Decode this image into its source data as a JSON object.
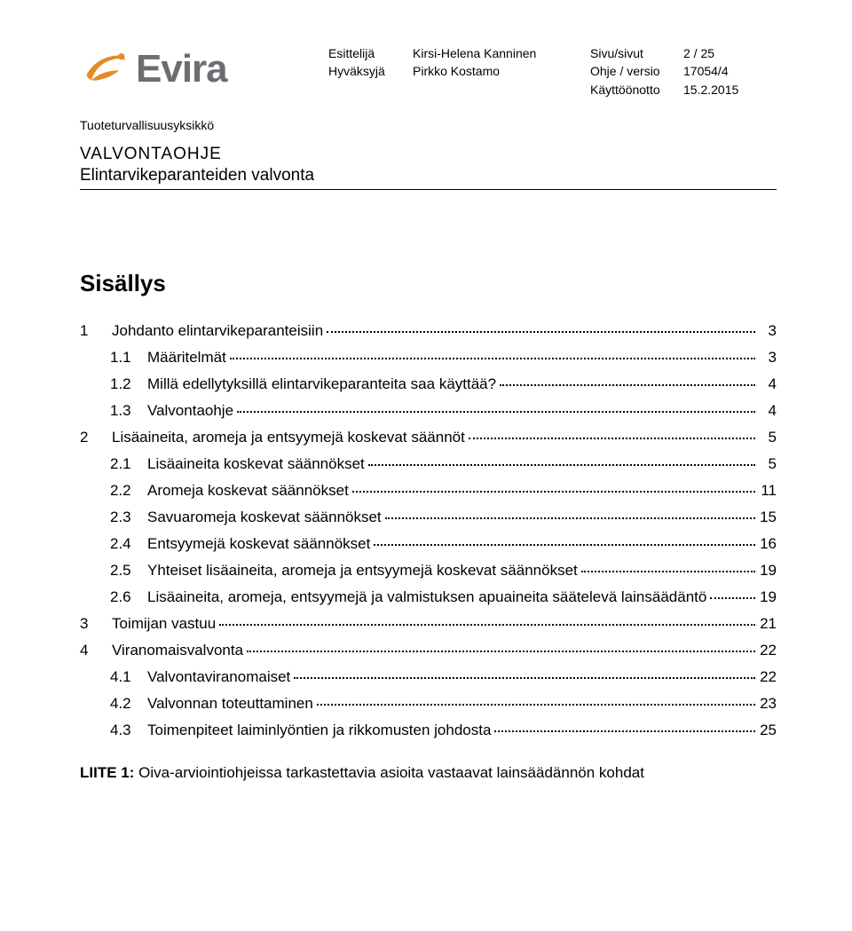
{
  "header": {
    "logo": {
      "text": "Evira",
      "color": "#6b6d71",
      "swoosh_color": "#e58b22"
    },
    "labels1": [
      "Esittelijä",
      "Hyväksyjä"
    ],
    "names": [
      "Kirsi-Helena Kanninen",
      "Pirkko Kostamo"
    ],
    "labels2": [
      "Sivu/sivut",
      "Ohje / versio",
      "Käyttöönotto"
    ],
    "values": [
      "2 / 25",
      "17054/4",
      "15.2.2015"
    ]
  },
  "unit": "Tuoteturvallisuusyksikkö",
  "doc_title_main": "VALVONTAOHJE",
  "doc_title_sub": "Elintarvikeparanteiden valvonta",
  "toc_heading": "Sisällys",
  "toc": [
    {
      "level": 1,
      "num": "1",
      "label": "Johdanto elintarvikeparanteisiin",
      "page": "3"
    },
    {
      "level": 2,
      "num": "1.1",
      "label": "Määritelmät",
      "page": "3"
    },
    {
      "level": 2,
      "num": "1.2",
      "label": "Millä edellytyksillä elintarvikeparanteita saa käyttää?",
      "page": "4"
    },
    {
      "level": 2,
      "num": "1.3",
      "label": "Valvontaohje",
      "page": "4"
    },
    {
      "level": 1,
      "num": "2",
      "label": "Lisäaineita, aromeja ja entsyymejä koskevat säännöt",
      "page": "5"
    },
    {
      "level": 2,
      "num": "2.1",
      "label": "Lisäaineita koskevat säännökset",
      "page": "5"
    },
    {
      "level": 2,
      "num": "2.2",
      "label": "Aromeja koskevat säännökset",
      "page": "11"
    },
    {
      "level": 2,
      "num": "2.3",
      "label": "Savuaromeja koskevat säännökset",
      "page": "15"
    },
    {
      "level": 2,
      "num": "2.4",
      "label": "Entsyymejä koskevat säännökset",
      "page": "16"
    },
    {
      "level": 2,
      "num": "2.5",
      "label": "Yhteiset lisäaineita, aromeja ja entsyymejä koskevat säännökset",
      "page": "19"
    },
    {
      "level": 2,
      "num": "2.6",
      "label": "Lisäaineita, aromeja, entsyymejä ja valmistuksen apuaineita säätelevä lainsäädäntö",
      "page": "19"
    },
    {
      "level": 1,
      "num": "3",
      "label": "Toimijan vastuu",
      "page": "21"
    },
    {
      "level": 1,
      "num": "4",
      "label": "Viranomaisvalvonta",
      "page": "22"
    },
    {
      "level": 2,
      "num": "4.1",
      "label": "Valvontaviranomaiset",
      "page": "22"
    },
    {
      "level": 2,
      "num": "4.2",
      "label": "Valvonnan toteuttaminen",
      "page": "23"
    },
    {
      "level": 2,
      "num": "4.3",
      "label": "Toimenpiteet laiminlyöntien ja rikkomusten johdosta",
      "page": "25"
    }
  ],
  "appendix": {
    "prefix": "LIITE 1:",
    "text": " Oiva-arviointiohjeissa tarkastettavia asioita vastaavat lainsäädännön kohdat"
  },
  "colors": {
    "background": "#ffffff",
    "text": "#000000",
    "logo_text": "#6b6d71",
    "logo_swoosh": "#e58b22",
    "divider": "#000000"
  },
  "typography": {
    "body_font": "Arial",
    "body_size_pt": 13,
    "heading_size_pt": 20,
    "logo_size_pt": 33
  }
}
